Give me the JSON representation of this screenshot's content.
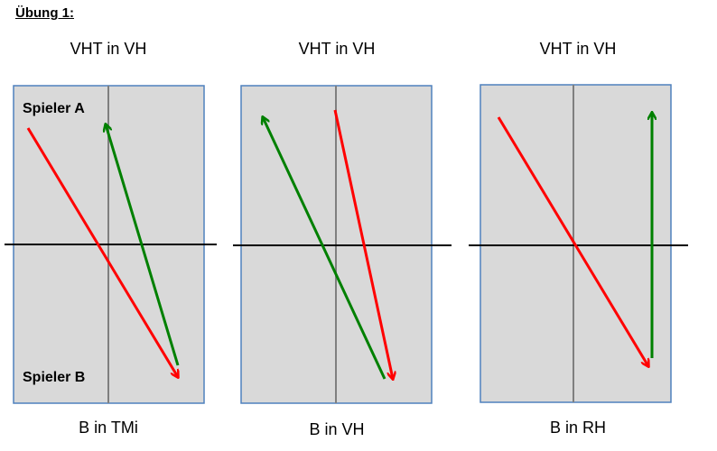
{
  "title": "Übung 1:",
  "panels": [
    {
      "top_caption": "VHT in VH",
      "bottom_caption": "B in TMi",
      "label_top": "Spieler A",
      "label_bottom": "Spieler B"
    },
    {
      "top_caption": "VHT in VH",
      "bottom_caption": "B in VH"
    },
    {
      "top_caption": "VHT in VH",
      "bottom_caption": "B in RH"
    }
  ],
  "colors": {
    "court_fill": "#d9d9d9",
    "court_border": "#4f81bd",
    "net": "#000000",
    "center_line": "#7f7f7f",
    "red_arrow": "#ff0000",
    "green_arrow": "#008000"
  }
}
